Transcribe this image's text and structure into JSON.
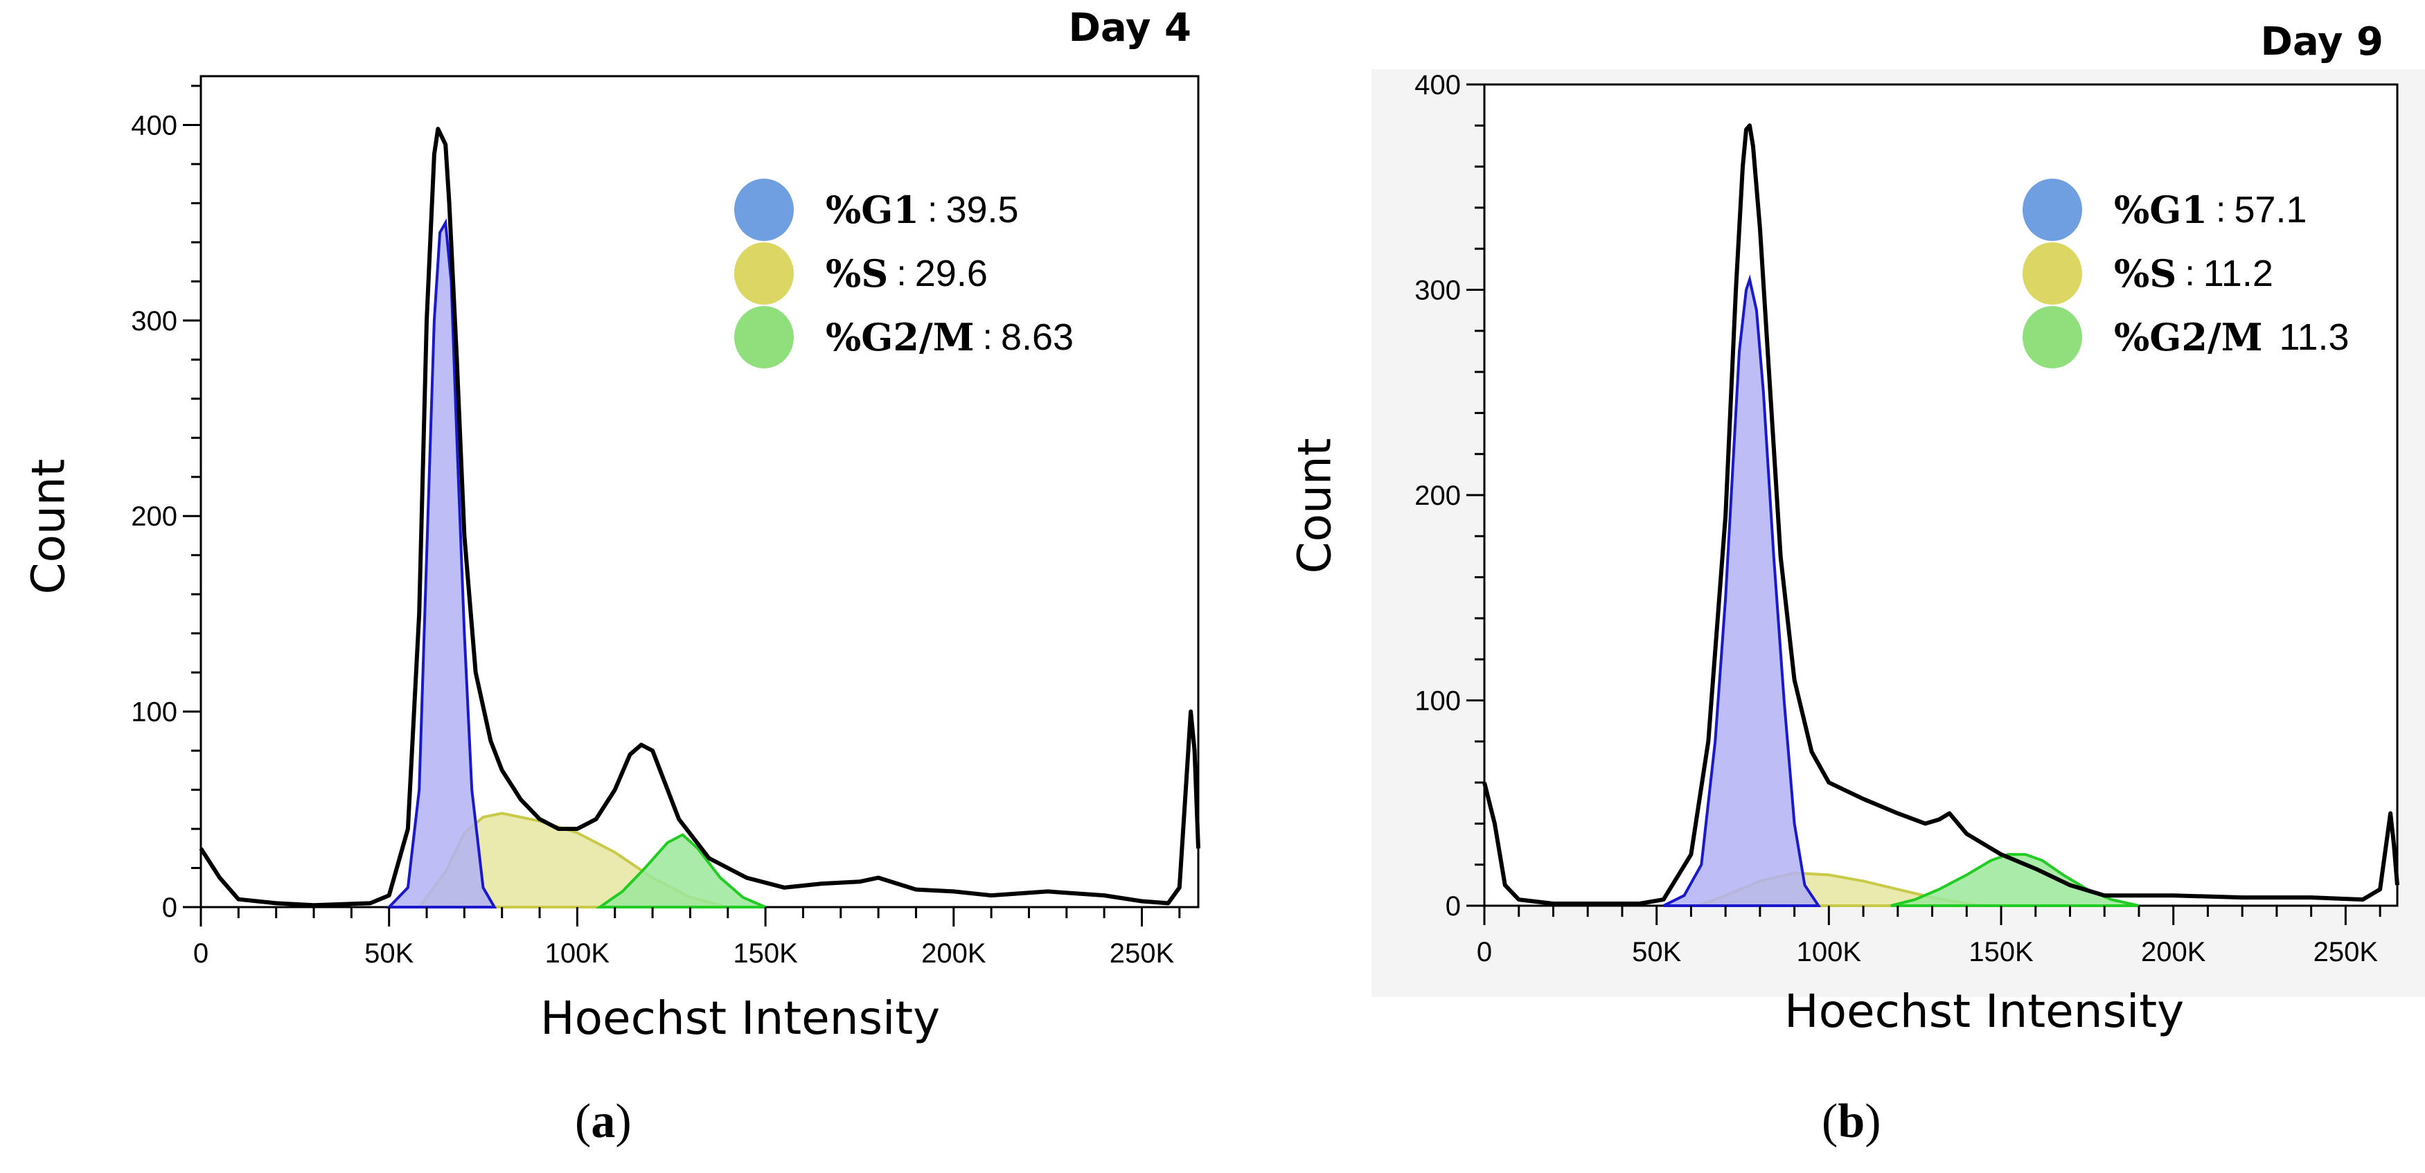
{
  "chart_data": [
    {
      "type": "area",
      "panel_label": "a",
      "title": "Day 4",
      "xlabel": "Hoechst Intensity",
      "ylabel": "Count",
      "xlim": [
        0,
        265000
      ],
      "ylim": [
        0,
        420
      ],
      "x_ticks": [
        0,
        50000,
        100000,
        150000,
        200000,
        250000
      ],
      "x_tick_labels": [
        "0",
        "50K",
        "100K",
        "150K",
        "200K",
        "250K"
      ],
      "y_ticks": [
        0,
        100,
        200,
        300,
        400
      ],
      "y_tick_labels": [
        "0",
        "100",
        "200",
        "300",
        "400"
      ],
      "legend": [
        {
          "label": "%G1",
          "sep": ":",
          "value": "39.5",
          "color": "#6f9fe0"
        },
        {
          "label": "%S",
          "sep": ":",
          "value": "29.6",
          "color": "#dcd763"
        },
        {
          "label": "%G2/M",
          "sep": ":",
          "value": "8.63",
          "color": "#8fe07d"
        }
      ],
      "series": [
        {
          "name": "Total histogram",
          "kind": "line",
          "color": "#000000",
          "points": [
            [
              0,
              30
            ],
            [
              5000,
              15
            ],
            [
              10000,
              4
            ],
            [
              20000,
              2
            ],
            [
              30000,
              1
            ],
            [
              45000,
              2
            ],
            [
              50000,
              6
            ],
            [
              55000,
              40
            ],
            [
              58000,
              150
            ],
            [
              60000,
              300
            ],
            [
              62000,
              385
            ],
            [
              63000,
              398
            ],
            [
              65000,
              390
            ],
            [
              66000,
              360
            ],
            [
              68000,
              280
            ],
            [
              70000,
              190
            ],
            [
              73000,
              120
            ],
            [
              77000,
              85
            ],
            [
              80000,
              70
            ],
            [
              85000,
              55
            ],
            [
              90000,
              45
            ],
            [
              95000,
              40
            ],
            [
              100000,
              40
            ],
            [
              105000,
              45
            ],
            [
              110000,
              60
            ],
            [
              114000,
              78
            ],
            [
              117000,
              83
            ],
            [
              120000,
              80
            ],
            [
              123000,
              65
            ],
            [
              127000,
              45
            ],
            [
              135000,
              25
            ],
            [
              145000,
              15
            ],
            [
              155000,
              10
            ],
            [
              165000,
              12
            ],
            [
              175000,
              13
            ],
            [
              180000,
              15
            ],
            [
              190000,
              9
            ],
            [
              200000,
              8
            ],
            [
              210000,
              6
            ],
            [
              225000,
              8
            ],
            [
              240000,
              6
            ],
            [
              250000,
              3
            ],
            [
              257000,
              2
            ],
            [
              260000,
              10
            ],
            [
              262000,
              70
            ],
            [
              263000,
              100
            ],
            [
              264000,
              80
            ],
            [
              265000,
              30
            ]
          ]
        },
        {
          "name": "G1",
          "kind": "area",
          "fill": "#b3b3f5",
          "stroke": "#1a1acc",
          "points": [
            [
              50000,
              0
            ],
            [
              55000,
              10
            ],
            [
              58000,
              60
            ],
            [
              60000,
              180
            ],
            [
              62000,
              300
            ],
            [
              63500,
              345
            ],
            [
              65000,
              350
            ],
            [
              66500,
              320
            ],
            [
              68000,
              240
            ],
            [
              70000,
              140
            ],
            [
              72000,
              60
            ],
            [
              75000,
              10
            ],
            [
              78000,
              0
            ]
          ]
        },
        {
          "name": "S",
          "kind": "area",
          "fill": "#e6e6a1",
          "stroke": "#c9c94a",
          "points": [
            [
              58000,
              0
            ],
            [
              65000,
              18
            ],
            [
              70000,
              38
            ],
            [
              75000,
              46
            ],
            [
              80000,
              48
            ],
            [
              90000,
              44
            ],
            [
              100000,
              38
            ],
            [
              110000,
              28
            ],
            [
              120000,
              15
            ],
            [
              130000,
              5
            ],
            [
              140000,
              0
            ]
          ]
        },
        {
          "name": "G2/M",
          "kind": "area",
          "fill": "#9be89b",
          "stroke": "#22cc22",
          "points": [
            [
              106000,
              0
            ],
            [
              112000,
              8
            ],
            [
              118000,
              20
            ],
            [
              124000,
              33
            ],
            [
              128000,
              37
            ],
            [
              132000,
              30
            ],
            [
              138000,
              15
            ],
            [
              144000,
              5
            ],
            [
              150000,
              0
            ]
          ]
        }
      ]
    },
    {
      "type": "area",
      "panel_label": "b",
      "title": "Day 9",
      "xlabel": "Hoechst Intensity",
      "ylabel": "Count",
      "xlim": [
        0,
        265000
      ],
      "ylim": [
        0,
        400
      ],
      "x_ticks": [
        0,
        50000,
        100000,
        150000,
        200000,
        250000
      ],
      "x_tick_labels": [
        "0",
        "50K",
        "100K",
        "150K",
        "200K",
        "250K"
      ],
      "y_ticks": [
        0,
        100,
        200,
        300,
        400
      ],
      "y_tick_labels": [
        "0",
        "100",
        "200",
        "300",
        "400"
      ],
      "legend": [
        {
          "label": "%G1",
          "sep": ":",
          "value": "57.1",
          "color": "#6f9fe0"
        },
        {
          "label": "%S",
          "sep": ":",
          "value": "11.2",
          "color": "#dcd763"
        },
        {
          "label": "%G2/M",
          "sep": "",
          "value": "11.3",
          "color": "#8fe07d"
        }
      ],
      "series": [
        {
          "name": "Total histogram",
          "kind": "line",
          "color": "#000000",
          "points": [
            [
              0,
              60
            ],
            [
              3000,
              40
            ],
            [
              6000,
              10
            ],
            [
              10000,
              3
            ],
            [
              20000,
              1
            ],
            [
              45000,
              1
            ],
            [
              52000,
              3
            ],
            [
              60000,
              25
            ],
            [
              65000,
              80
            ],
            [
              70000,
              190
            ],
            [
              73000,
              300
            ],
            [
              75000,
              360
            ],
            [
              76000,
              378
            ],
            [
              77000,
              380
            ],
            [
              78000,
              370
            ],
            [
              80000,
              330
            ],
            [
              83000,
              250
            ],
            [
              86000,
              170
            ],
            [
              90000,
              110
            ],
            [
              95000,
              75
            ],
            [
              100000,
              60
            ],
            [
              110000,
              52
            ],
            [
              120000,
              45
            ],
            [
              128000,
              40
            ],
            [
              132000,
              42
            ],
            [
              135000,
              45
            ],
            [
              140000,
              35
            ],
            [
              150000,
              25
            ],
            [
              160000,
              18
            ],
            [
              170000,
              10
            ],
            [
              180000,
              5
            ],
            [
              200000,
              5
            ],
            [
              220000,
              4
            ],
            [
              240000,
              4
            ],
            [
              255000,
              3
            ],
            [
              260000,
              8
            ],
            [
              263000,
              45
            ],
            [
              264000,
              30
            ],
            [
              265000,
              10
            ]
          ]
        },
        {
          "name": "G1",
          "kind": "area",
          "fill": "#b3b3f5",
          "stroke": "#1a1acc",
          "points": [
            [
              52000,
              0
            ],
            [
              58000,
              5
            ],
            [
              63000,
              20
            ],
            [
              67000,
              80
            ],
            [
              70000,
              150
            ],
            [
              72000,
              210
            ],
            [
              74000,
              270
            ],
            [
              76000,
              300
            ],
            [
              77000,
              305
            ],
            [
              79000,
              290
            ],
            [
              81000,
              250
            ],
            [
              84000,
              170
            ],
            [
              87000,
              100
            ],
            [
              90000,
              40
            ],
            [
              93000,
              10
            ],
            [
              97000,
              0
            ]
          ]
        },
        {
          "name": "S",
          "kind": "area",
          "fill": "#e6e6a1",
          "stroke": "#c9c94a",
          "points": [
            [
              62000,
              0
            ],
            [
              70000,
              5
            ],
            [
              80000,
              12
            ],
            [
              90000,
              16
            ],
            [
              100000,
              15
            ],
            [
              110000,
              12
            ],
            [
              120000,
              8
            ],
            [
              130000,
              4
            ],
            [
              140000,
              1
            ],
            [
              145000,
              0
            ]
          ]
        },
        {
          "name": "G2/M",
          "kind": "area",
          "fill": "#9be89b",
          "stroke": "#22cc22",
          "points": [
            [
              118000,
              0
            ],
            [
              125000,
              3
            ],
            [
              132000,
              8
            ],
            [
              140000,
              15
            ],
            [
              147000,
              22
            ],
            [
              152000,
              25
            ],
            [
              157000,
              25
            ],
            [
              162000,
              22
            ],
            [
              168000,
              15
            ],
            [
              175000,
              8
            ],
            [
              182000,
              3
            ],
            [
              190000,
              0
            ]
          ]
        }
      ]
    }
  ]
}
